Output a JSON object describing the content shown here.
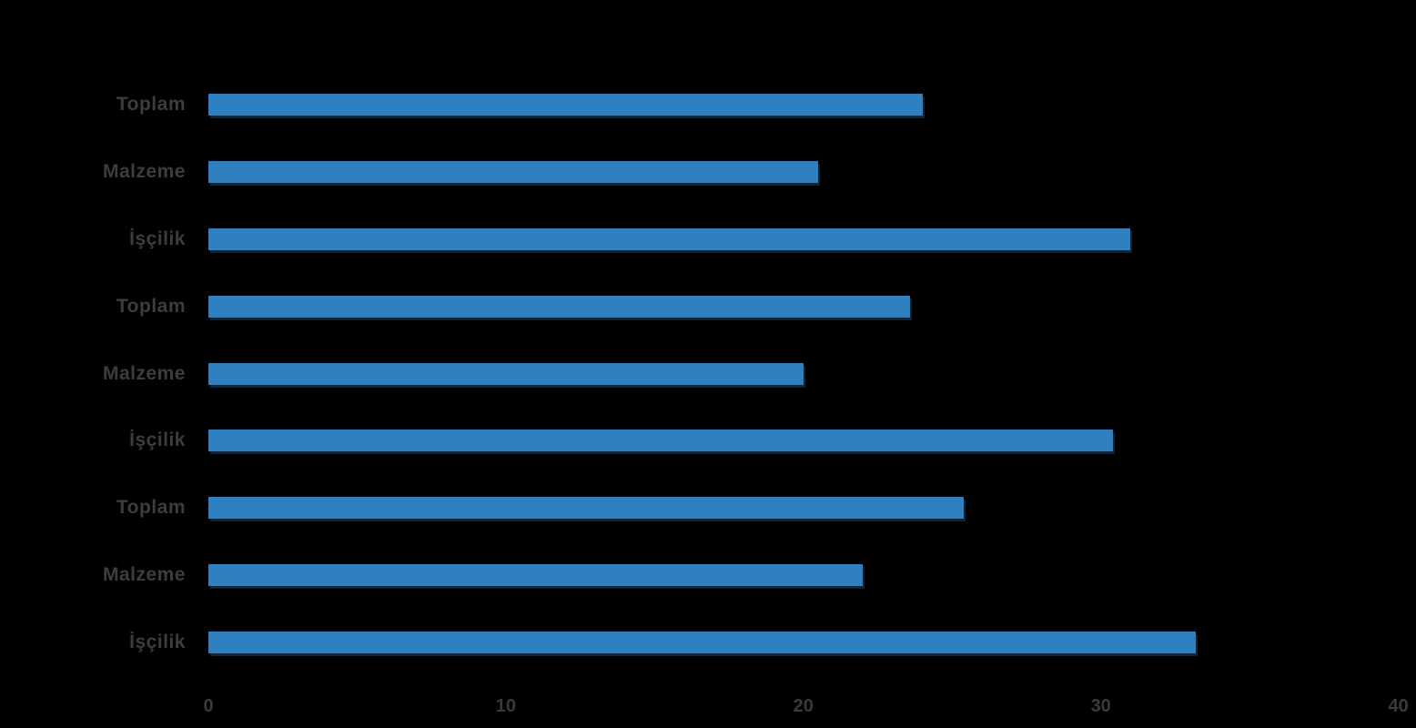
{
  "chart_data": {
    "type": "bar",
    "orientation": "horizontal",
    "categories": [
      "Toplam",
      "Malzeme",
      "İşçilik",
      "Toplam",
      "Malzeme",
      "İşçilik",
      "Toplam",
      "Malzeme",
      "İşçilik"
    ],
    "values": [
      24.0,
      20.5,
      31.0,
      23.6,
      20.0,
      30.4,
      25.4,
      22.0,
      33.2
    ],
    "groups_note": "labels repeat in 3 groups of Toplam/Malzeme/İşçilik, listed top to bottom",
    "x_ticks": [
      "0",
      "10",
      "20",
      "30",
      "40"
    ],
    "xlim": [
      0,
      40
    ],
    "grid": false,
    "legend": false,
    "colors": {
      "bar": "#2E80C0",
      "bar_shadow": "#0D2B47",
      "category_label": "#3D3D3D",
      "tick_label": "#3A3A3A",
      "background": "#000000"
    }
  }
}
